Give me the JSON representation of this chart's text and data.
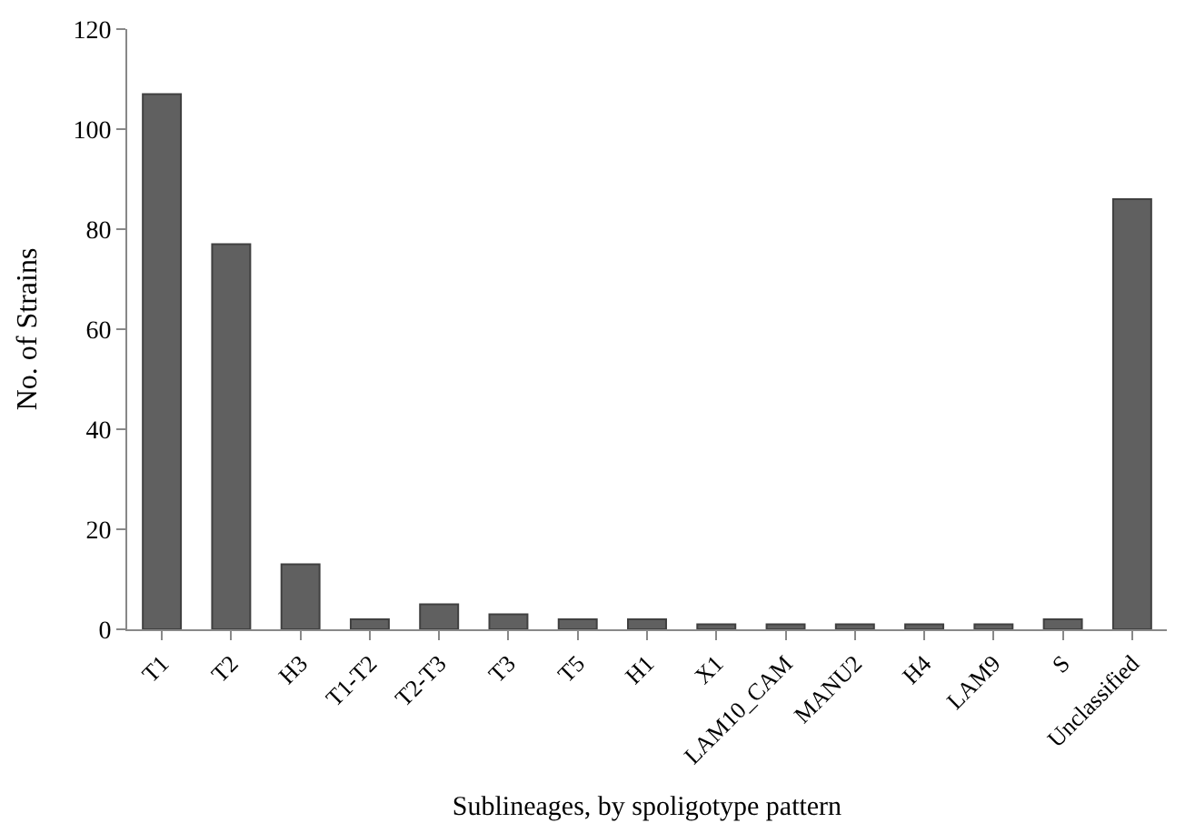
{
  "chart_data": {
    "type": "bar",
    "xlabel": "Sublineages, by spoligotype pattern",
    "ylabel": "No. of Strains",
    "categories": [
      "T1",
      "T2",
      "H3",
      "T1-T2",
      "T2-T3",
      "T3",
      "T5",
      "H1",
      "X1",
      "LAM10_CAM",
      "MANU2",
      "H4",
      "LAM9",
      "S",
      "Unclassified"
    ],
    "values": [
      107,
      77,
      13,
      2,
      5,
      3,
      2,
      2,
      1,
      1,
      1,
      1,
      1,
      2,
      86
    ],
    "color": "#606060",
    "ylim": [
      0,
      120
    ],
    "yticks": [
      0,
      20,
      40,
      60,
      80,
      100,
      120
    ]
  }
}
